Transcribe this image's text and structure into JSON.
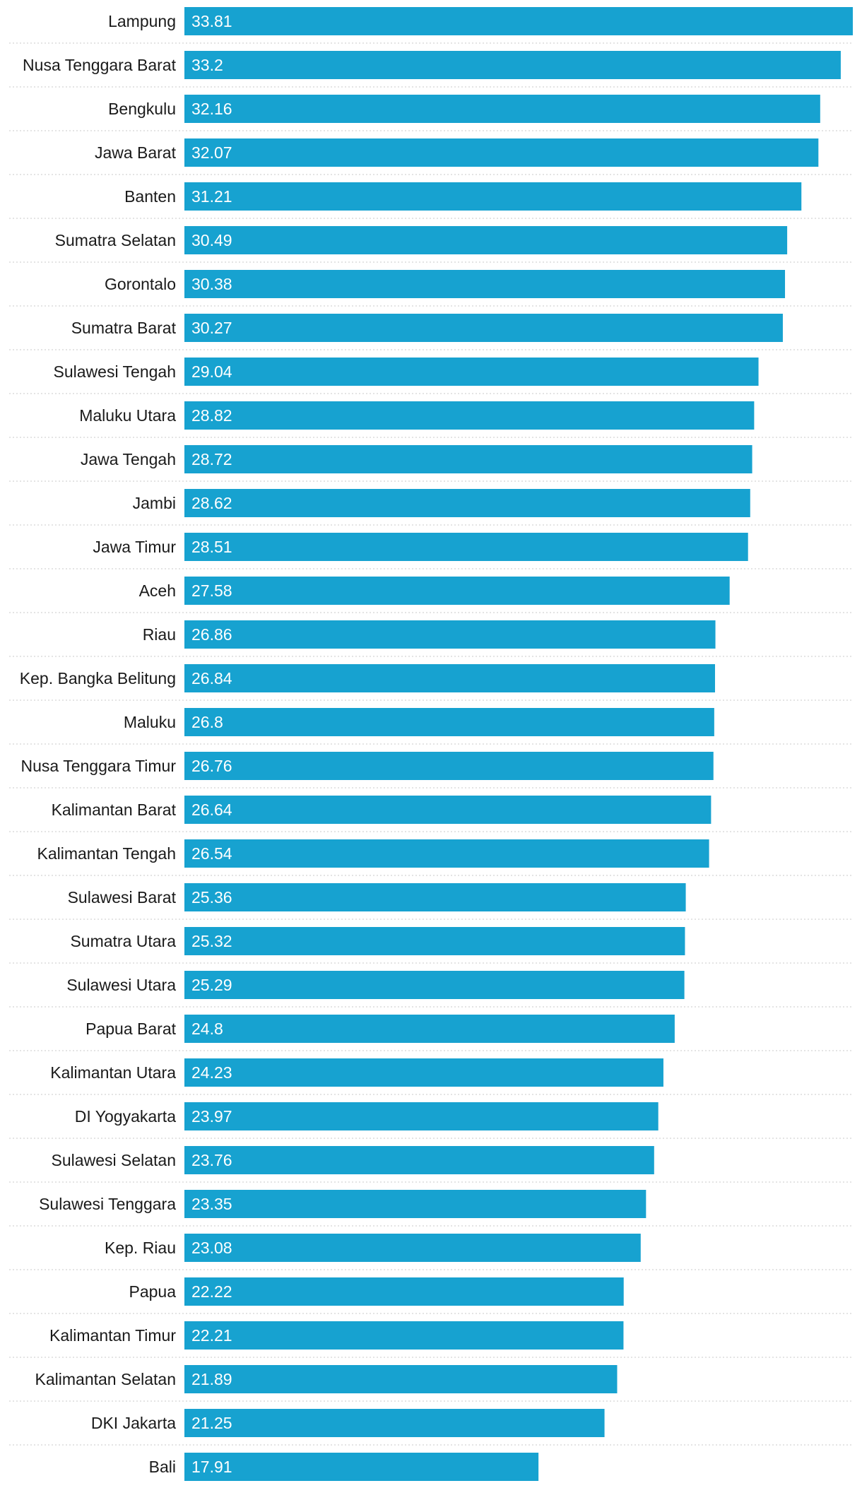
{
  "chart_data": {
    "type": "bar",
    "orientation": "horizontal",
    "categories": [
      "Lampung",
      "Nusa Tenggara Barat",
      "Bengkulu",
      "Jawa Barat",
      "Banten",
      "Sumatra Selatan",
      "Gorontalo",
      "Sumatra Barat",
      "Sulawesi Tengah",
      "Maluku Utara",
      "Jawa Tengah",
      "Jambi",
      "Jawa Timur",
      "Aceh",
      "Riau",
      "Kep. Bangka Belitung",
      "Maluku",
      "Nusa Tenggara Timur",
      "Kalimantan Barat",
      "Kalimantan Tengah",
      "Sulawesi Barat",
      "Sumatra Utara",
      "Sulawesi Utara",
      "Papua Barat",
      "Kalimantan Utara",
      "DI Yogyakarta",
      "Sulawesi Selatan",
      "Sulawesi Tenggara",
      "Kep. Riau",
      "Papua",
      "Kalimantan Timur",
      "Kalimantan Selatan",
      "DKI Jakarta",
      "Bali"
    ],
    "values": [
      33.81,
      33.2,
      32.16,
      32.07,
      31.21,
      30.49,
      30.38,
      30.27,
      29.04,
      28.82,
      28.72,
      28.62,
      28.51,
      27.58,
      26.86,
      26.84,
      26.8,
      26.76,
      26.64,
      26.54,
      25.36,
      25.32,
      25.29,
      24.8,
      24.23,
      23.97,
      23.76,
      23.35,
      23.08,
      22.22,
      22.21,
      21.89,
      21.25,
      17.91
    ],
    "value_labels": [
      "33.81",
      "33.2",
      "32.16",
      "32.07",
      "31.21",
      "30.49",
      "30.38",
      "30.27",
      "29.04",
      "28.82",
      "28.72",
      "28.62",
      "28.51",
      "27.58",
      "26.86",
      "26.84",
      "26.8",
      "26.76",
      "26.64",
      "26.54",
      "25.36",
      "25.32",
      "25.29",
      "24.8",
      "24.23",
      "23.97",
      "23.76",
      "23.35",
      "23.08",
      "22.22",
      "22.21",
      "21.89",
      "21.25",
      "17.91"
    ],
    "xlim": [
      0,
      33.81
    ],
    "title": "",
    "xlabel": "",
    "ylabel": "",
    "grid": false,
    "legend": "none",
    "colors": {
      "bar": "#17a2d0",
      "value_text": "#ffffff",
      "label_text": "#1a1a1a",
      "separator": "#c8c8c8"
    }
  }
}
